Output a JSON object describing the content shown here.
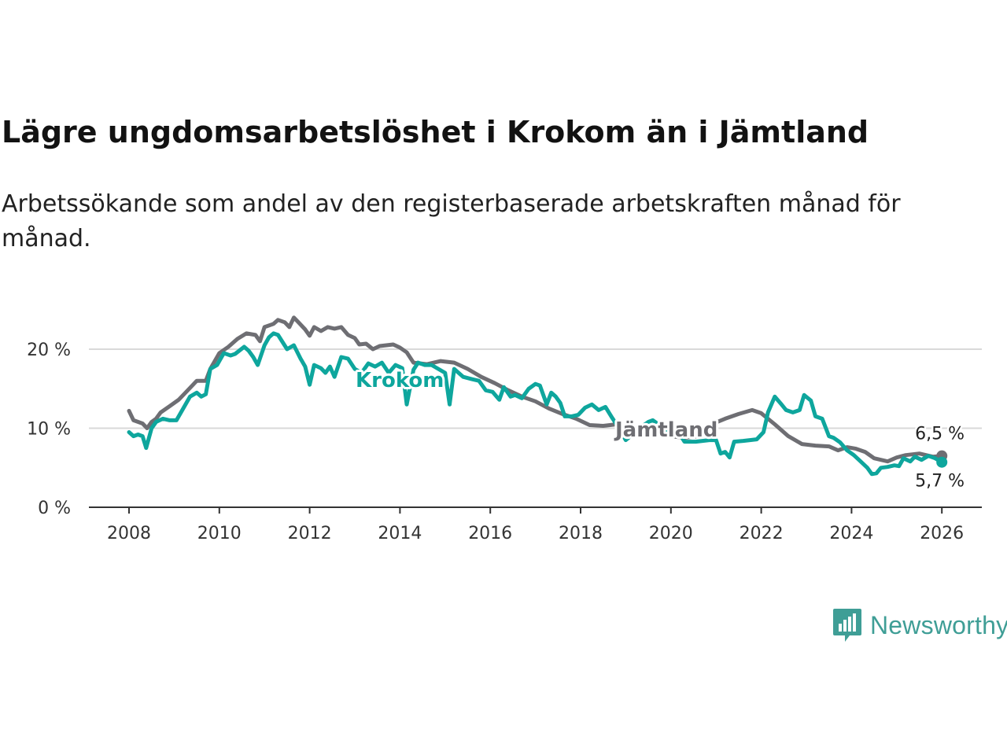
{
  "header": {
    "title": "Lägre ungdomsarbetslöshet i Krokom än i Jämtland",
    "subtitle": "Arbetssökande som andel av den registerbaserade arbetskraften månad för månad."
  },
  "brand": {
    "name": "Newsworthy",
    "color": "#3f9e96"
  },
  "chart_data": {
    "type": "line",
    "title": "Lägre ungdomsarbetslöshet i Krokom än i Jämtland",
    "subtitle": "Arbetssökande som andel av den registerbaserade arbetskraften månad för månad.",
    "xlabel": "",
    "ylabel": "",
    "xlim": [
      2007.5,
      2026.9
    ],
    "ylim": [
      0,
      22
    ],
    "x_ticks": [
      2008,
      2010,
      2012,
      2014,
      2016,
      2018,
      2020,
      2022,
      2024,
      2026
    ],
    "x_tick_labels": [
      "2008",
      "2010",
      "2012",
      "2014",
      "2016",
      "2018",
      "2020",
      "2022",
      "2024",
      "2026"
    ],
    "y_ticks": [
      0,
      10,
      20
    ],
    "y_tick_labels": [
      "0 %",
      "10 %",
      "20 %"
    ],
    "grid": "horizontal",
    "series": [
      {
        "name": "Jämtland",
        "color": "#6e6e73",
        "end_label": "6,5 %",
        "points": [
          [
            2008.0,
            12.2
          ],
          [
            2008.1,
            11.0
          ],
          [
            2008.3,
            10.6
          ],
          [
            2008.4,
            10.0
          ],
          [
            2008.5,
            10.8
          ],
          [
            2008.6,
            11.2
          ],
          [
            2008.7,
            12.0
          ],
          [
            2008.9,
            12.8
          ],
          [
            2009.1,
            13.6
          ],
          [
            2009.3,
            14.8
          ],
          [
            2009.5,
            16.0
          ],
          [
            2009.7,
            16.0
          ],
          [
            2009.8,
            17.5
          ],
          [
            2010.0,
            19.5
          ],
          [
            2010.2,
            20.3
          ],
          [
            2010.4,
            21.3
          ],
          [
            2010.6,
            22.0
          ],
          [
            2010.8,
            21.8
          ],
          [
            2010.9,
            21.0
          ],
          [
            2011.0,
            22.8
          ],
          [
            2011.2,
            23.2
          ],
          [
            2011.3,
            23.7
          ],
          [
            2011.45,
            23.4
          ],
          [
            2011.55,
            22.8
          ],
          [
            2011.65,
            24.0
          ],
          [
            2011.75,
            23.4
          ],
          [
            2011.9,
            22.5
          ],
          [
            2012.0,
            21.7
          ],
          [
            2012.1,
            22.8
          ],
          [
            2012.25,
            22.3
          ],
          [
            2012.4,
            22.8
          ],
          [
            2012.55,
            22.6
          ],
          [
            2012.7,
            22.8
          ],
          [
            2012.85,
            21.8
          ],
          [
            2013.0,
            21.4
          ],
          [
            2013.1,
            20.6
          ],
          [
            2013.25,
            20.7
          ],
          [
            2013.4,
            20.0
          ],
          [
            2013.55,
            20.4
          ],
          [
            2013.7,
            20.5
          ],
          [
            2013.85,
            20.6
          ],
          [
            2014.0,
            20.2
          ],
          [
            2014.15,
            19.6
          ],
          [
            2014.3,
            18.3
          ],
          [
            2014.6,
            18.1
          ],
          [
            2014.9,
            18.5
          ],
          [
            2015.2,
            18.3
          ],
          [
            2015.5,
            17.5
          ],
          [
            2015.8,
            16.5
          ],
          [
            2016.1,
            15.7
          ],
          [
            2016.4,
            14.8
          ],
          [
            2016.7,
            14.0
          ],
          [
            2017.0,
            13.4
          ],
          [
            2017.3,
            12.5
          ],
          [
            2017.6,
            11.8
          ],
          [
            2017.9,
            11.2
          ],
          [
            2018.2,
            10.4
          ],
          [
            2018.5,
            10.3
          ],
          [
            2018.8,
            10.5
          ],
          [
            2019.1,
            10.0
          ],
          [
            2019.4,
            9.6
          ],
          [
            2019.7,
            9.3
          ],
          [
            2020.0,
            9.0
          ],
          [
            2020.3,
            8.8
          ],
          [
            2020.6,
            9.0
          ],
          [
            2020.9,
            10.5
          ],
          [
            2021.2,
            11.2
          ],
          [
            2021.5,
            11.8
          ],
          [
            2021.8,
            12.3
          ],
          [
            2022.0,
            11.9
          ],
          [
            2022.3,
            10.5
          ],
          [
            2022.6,
            9.0
          ],
          [
            2022.9,
            8.0
          ],
          [
            2023.2,
            7.8
          ],
          [
            2023.5,
            7.7
          ],
          [
            2023.7,
            7.2
          ],
          [
            2023.9,
            7.6
          ],
          [
            2024.1,
            7.4
          ],
          [
            2024.3,
            7.0
          ],
          [
            2024.5,
            6.2
          ],
          [
            2024.8,
            5.8
          ],
          [
            2025.0,
            6.3
          ],
          [
            2025.2,
            6.6
          ],
          [
            2025.5,
            6.8
          ],
          [
            2025.8,
            6.4
          ],
          [
            2026.0,
            6.5
          ]
        ]
      },
      {
        "name": "Krokom",
        "color": "#0ea69d",
        "end_label": "5,7 %",
        "points": [
          [
            2008.0,
            9.5
          ],
          [
            2008.1,
            9.0
          ],
          [
            2008.2,
            9.2
          ],
          [
            2008.3,
            9.0
          ],
          [
            2008.38,
            7.5
          ],
          [
            2008.5,
            10.0
          ],
          [
            2008.6,
            10.8
          ],
          [
            2008.75,
            11.2
          ],
          [
            2008.9,
            11.0
          ],
          [
            2009.05,
            11.0
          ],
          [
            2009.2,
            12.5
          ],
          [
            2009.35,
            14.0
          ],
          [
            2009.5,
            14.5
          ],
          [
            2009.6,
            14.0
          ],
          [
            2009.7,
            14.3
          ],
          [
            2009.8,
            17.5
          ],
          [
            2009.95,
            18.0
          ],
          [
            2010.1,
            19.5
          ],
          [
            2010.25,
            19.2
          ],
          [
            2010.35,
            19.4
          ],
          [
            2010.55,
            20.3
          ],
          [
            2010.65,
            19.8
          ],
          [
            2010.75,
            19.0
          ],
          [
            2010.85,
            18.0
          ],
          [
            2011.0,
            20.5
          ],
          [
            2011.1,
            21.5
          ],
          [
            2011.2,
            22.0
          ],
          [
            2011.3,
            21.8
          ],
          [
            2011.5,
            20.0
          ],
          [
            2011.65,
            20.5
          ],
          [
            2011.8,
            18.8
          ],
          [
            2011.9,
            17.8
          ],
          [
            2012.0,
            15.5
          ],
          [
            2012.1,
            18.0
          ],
          [
            2012.25,
            17.6
          ],
          [
            2012.35,
            17.0
          ],
          [
            2012.45,
            17.8
          ],
          [
            2012.55,
            16.5
          ],
          [
            2012.7,
            19.0
          ],
          [
            2012.85,
            18.8
          ],
          [
            2013.0,
            17.5
          ],
          [
            2013.15,
            17.0
          ],
          [
            2013.3,
            18.2
          ],
          [
            2013.45,
            17.8
          ],
          [
            2013.6,
            18.3
          ],
          [
            2013.75,
            17.0
          ],
          [
            2013.9,
            18.0
          ],
          [
            2014.05,
            17.6
          ],
          [
            2014.15,
            13.0
          ],
          [
            2014.3,
            17.4
          ],
          [
            2014.4,
            18.3
          ],
          [
            2014.55,
            18.0
          ],
          [
            2014.7,
            18.0
          ],
          [
            2014.85,
            17.5
          ],
          [
            2015.0,
            17.0
          ],
          [
            2015.1,
            13.0
          ],
          [
            2015.2,
            17.5
          ],
          [
            2015.4,
            16.5
          ],
          [
            2015.6,
            16.2
          ],
          [
            2015.75,
            16.0
          ],
          [
            2015.9,
            14.8
          ],
          [
            2016.05,
            14.6
          ],
          [
            2016.2,
            13.6
          ],
          [
            2016.3,
            15.2
          ],
          [
            2016.45,
            14.0
          ],
          [
            2016.55,
            14.2
          ],
          [
            2016.7,
            13.8
          ],
          [
            2016.85,
            15.0
          ],
          [
            2017.0,
            15.6
          ],
          [
            2017.1,
            15.4
          ],
          [
            2017.25,
            13.0
          ],
          [
            2017.35,
            14.5
          ],
          [
            2017.45,
            14.0
          ],
          [
            2017.55,
            13.2
          ],
          [
            2017.65,
            11.5
          ],
          [
            2017.8,
            11.5
          ],
          [
            2017.95,
            11.7
          ],
          [
            2018.1,
            12.6
          ],
          [
            2018.25,
            13.0
          ],
          [
            2018.4,
            12.3
          ],
          [
            2018.55,
            12.7
          ],
          [
            2018.7,
            11.3
          ],
          [
            2018.85,
            10.0
          ],
          [
            2019.0,
            8.5
          ],
          [
            2019.15,
            9.2
          ],
          [
            2019.3,
            10.0
          ],
          [
            2019.5,
            10.8
          ],
          [
            2019.6,
            11.0
          ],
          [
            2019.75,
            10.4
          ],
          [
            2019.9,
            9.8
          ],
          [
            2020.05,
            9.6
          ],
          [
            2020.2,
            9.2
          ],
          [
            2020.3,
            8.3
          ],
          [
            2020.45,
            8.3
          ],
          [
            2020.55,
            8.3
          ],
          [
            2020.7,
            8.4
          ],
          [
            2020.85,
            8.5
          ],
          [
            2021.0,
            8.5
          ],
          [
            2021.1,
            6.8
          ],
          [
            2021.2,
            7.0
          ],
          [
            2021.3,
            6.3
          ],
          [
            2021.4,
            8.3
          ],
          [
            2021.6,
            8.4
          ],
          [
            2021.75,
            8.5
          ],
          [
            2021.9,
            8.6
          ],
          [
            2022.05,
            9.5
          ],
          [
            2022.15,
            12.0
          ],
          [
            2022.3,
            14.0
          ],
          [
            2022.45,
            13.0
          ],
          [
            2022.55,
            12.3
          ],
          [
            2022.7,
            12.0
          ],
          [
            2022.85,
            12.3
          ],
          [
            2022.95,
            14.2
          ],
          [
            2023.1,
            13.5
          ],
          [
            2023.2,
            11.5
          ],
          [
            2023.35,
            11.2
          ],
          [
            2023.5,
            9.0
          ],
          [
            2023.6,
            8.8
          ],
          [
            2023.75,
            8.2
          ],
          [
            2023.9,
            7.2
          ],
          [
            2024.05,
            6.6
          ],
          [
            2024.2,
            5.8
          ],
          [
            2024.35,
            5.0
          ],
          [
            2024.45,
            4.2
          ],
          [
            2024.55,
            4.3
          ],
          [
            2024.65,
            5.0
          ],
          [
            2024.8,
            5.1
          ],
          [
            2024.95,
            5.3
          ],
          [
            2025.05,
            5.2
          ],
          [
            2025.15,
            6.2
          ],
          [
            2025.3,
            5.8
          ],
          [
            2025.4,
            6.4
          ],
          [
            2025.55,
            6.0
          ],
          [
            2025.7,
            6.5
          ],
          [
            2025.85,
            6.2
          ],
          [
            2026.0,
            5.7
          ]
        ]
      }
    ]
  }
}
